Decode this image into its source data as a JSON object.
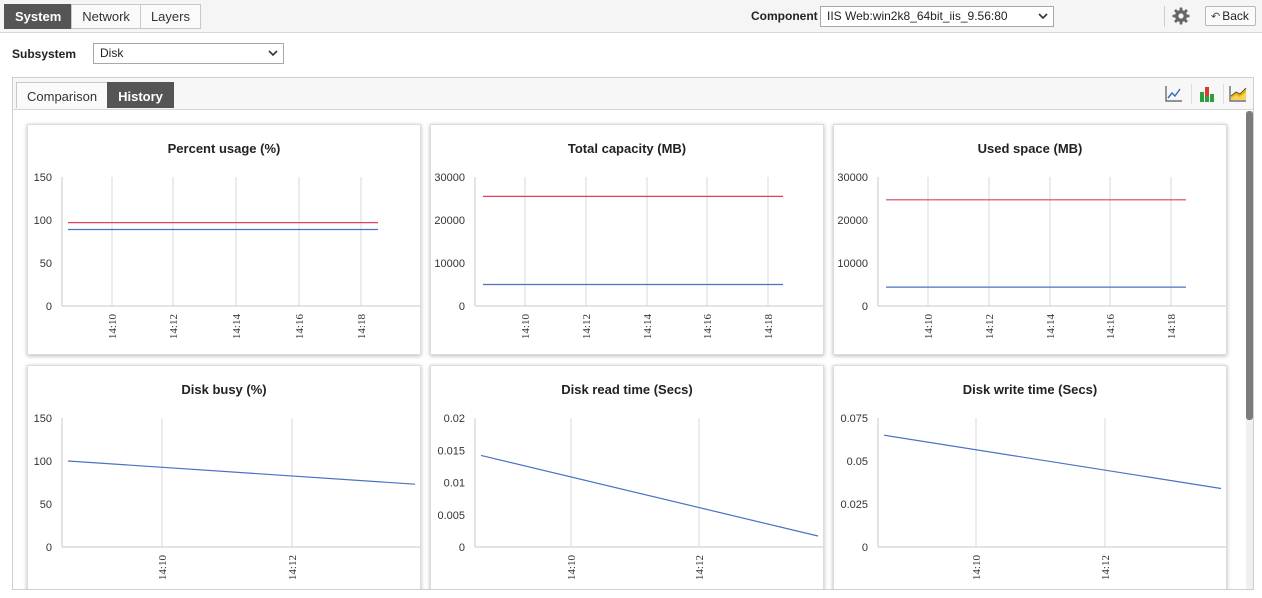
{
  "top_tabs": [
    {
      "label": "System",
      "active": true
    },
    {
      "label": "Network",
      "active": false
    },
    {
      "label": "Layers",
      "active": false
    }
  ],
  "component": {
    "label": "Component",
    "value": "IIS Web:win2k8_64bit_iis_9.56:80"
  },
  "back_label": "Back",
  "subsystem": {
    "label": "Subsystem",
    "value": "Disk"
  },
  "sub_tabs": [
    {
      "label": "Comparison",
      "active": false
    },
    {
      "label": "History",
      "active": true
    }
  ],
  "toolbar_icons": [
    "line-chart-icon",
    "bar-chart-icon",
    "area-chart-icon"
  ],
  "colors": {
    "series_red": "#e0405e",
    "series_blue": "#4a72c4",
    "accent_dark": "#555555"
  },
  "chart_data": [
    {
      "type": "line",
      "title": "Percent usage (%)",
      "x_ticks": [
        "14:10",
        "14:12",
        "14:14",
        "14:16",
        "14:18"
      ],
      "y_ticks": [
        "150",
        "100",
        "50",
        "0"
      ],
      "ylim": [
        0,
        150
      ],
      "xlim": [
        0,
        100
      ],
      "series": [
        {
          "color": "#e0405e",
          "x": [
            0,
            100
          ],
          "y": [
            97,
            97
          ]
        },
        {
          "color": "#4a72c4",
          "x": [
            0,
            100
          ],
          "y": [
            89,
            89
          ]
        }
      ]
    },
    {
      "type": "line",
      "title": "Total capacity (MB)",
      "x_ticks": [
        "14:10",
        "14:12",
        "14:14",
        "14:16",
        "14:18"
      ],
      "y_ticks": [
        "30000",
        "20000",
        "10000",
        "0"
      ],
      "ylim": [
        0,
        30000
      ],
      "xlim": [
        0,
        100
      ],
      "series": [
        {
          "color": "#e0405e",
          "x": [
            0,
            100
          ],
          "y": [
            25500,
            25500
          ]
        },
        {
          "color": "#4a72c4",
          "x": [
            0,
            100
          ],
          "y": [
            5000,
            5000
          ]
        }
      ]
    },
    {
      "type": "line",
      "title": "Used space (MB)",
      "x_ticks": [
        "14:10",
        "14:12",
        "14:14",
        "14:16",
        "14:18"
      ],
      "y_ticks": [
        "30000",
        "20000",
        "10000",
        "0"
      ],
      "ylim": [
        0,
        30000
      ],
      "xlim": [
        0,
        100
      ],
      "series": [
        {
          "color": "#e0405e",
          "x": [
            0,
            100
          ],
          "y": [
            24700,
            24700
          ]
        },
        {
          "color": "#4a72c4",
          "x": [
            0,
            100
          ],
          "y": [
            4400,
            4400
          ]
        }
      ]
    },
    {
      "type": "line",
      "title": "Disk busy (%)",
      "x_ticks": [
        "14:10",
        "14:12"
      ],
      "y_ticks": [
        "150",
        "100",
        "50",
        "0"
      ],
      "ylim": [
        0,
        150
      ],
      "xlim": [
        0,
        100
      ],
      "series": [
        {
          "color": "#4a72c4",
          "x": [
            0,
            100
          ],
          "y": [
            100,
            73
          ]
        }
      ]
    },
    {
      "type": "line",
      "title": "Disk read time (Secs)",
      "x_ticks": [
        "14:10",
        "14:12"
      ],
      "y_ticks": [
        "0.02",
        "0.015",
        "0.01",
        "0.005",
        "0"
      ],
      "ylim": [
        0,
        0.02
      ],
      "xlim": [
        0,
        100
      ],
      "series": [
        {
          "color": "#4a72c4",
          "x": [
            0,
            100
          ],
          "y": [
            0.0142,
            0.0017
          ]
        }
      ]
    },
    {
      "type": "line",
      "title": "Disk write time (Secs)",
      "x_ticks": [
        "14:10",
        "14:12"
      ],
      "y_ticks": [
        "0.075",
        "0.05",
        "0.025",
        "0"
      ],
      "ylim": [
        0,
        0.075
      ],
      "xlim": [
        0,
        100
      ],
      "series": [
        {
          "color": "#4a72c4",
          "x": [
            0,
            100
          ],
          "y": [
            0.065,
            0.034
          ]
        }
      ]
    }
  ]
}
